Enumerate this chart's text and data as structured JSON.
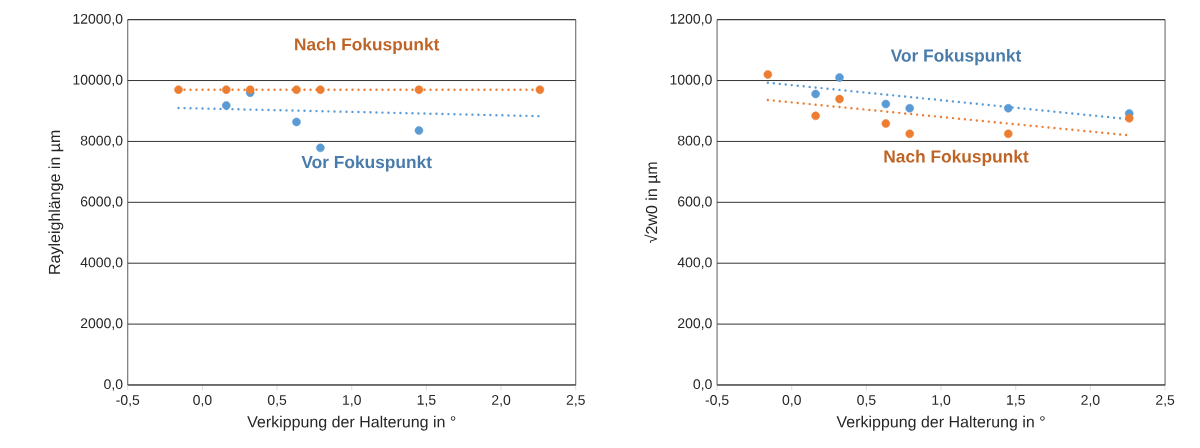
{
  "chart_data": [
    {
      "type": "scatter",
      "xlabel": "Verkippung der Halterung in °",
      "ylabel": "Rayleighlänge in µm",
      "grid": "y",
      "xlim": [
        -0.5,
        2.5
      ],
      "xticks": [
        {
          "value": -0.5,
          "label": "-0,5"
        },
        {
          "value": 0,
          "label": "0,0"
        },
        {
          "value": 0.5,
          "label": "0,5"
        },
        {
          "value": 1,
          "label": "1,0"
        },
        {
          "value": 1.5,
          "label": "1,5"
        },
        {
          "value": 2,
          "label": "2,0"
        },
        {
          "value": 2.5,
          "label": "2,5"
        }
      ],
      "ylim": [
        0,
        12000
      ],
      "yticks": [
        {
          "value": 0,
          "label": "0,0"
        },
        {
          "value": 2000,
          "label": "2000,0"
        },
        {
          "value": 4000,
          "label": "4000,0"
        },
        {
          "value": 6000,
          "label": "6000,0"
        },
        {
          "value": 8000,
          "label": "8000,0"
        },
        {
          "value": 10000,
          "label": "10000,0"
        },
        {
          "value": 12000,
          "label": "12000,0"
        }
      ],
      "series": [
        {
          "type": "line",
          "marker": "none",
          "line_style": "dotted",
          "color": "#5b9bd5",
          "x": [
            -0.16,
            2.26
          ],
          "values": [
            9100,
            8830
          ]
        },
        {
          "type": "line",
          "marker": "none",
          "line_style": "dotted",
          "color": "#ed7d31",
          "x": [
            -0.16,
            2.26
          ],
          "values": [
            9700,
            9700
          ]
        },
        {
          "name": "Vor Fokuspunkt",
          "marker": "circle",
          "color": "#5b9bd5",
          "x": [
            0.16,
            0.32,
            0.63,
            0.79,
            1.45
          ],
          "values": [
            9180,
            9600,
            8640,
            7790,
            8360
          ]
        },
        {
          "name": "Nach Fokuspunkt",
          "marker": "circle",
          "color": "#ed7d31",
          "x": [
            -0.16,
            0.16,
            0.32,
            0.63,
            0.79,
            1.45,
            2.26
          ],
          "values": [
            9700,
            9700,
            9700,
            9700,
            9700,
            9700,
            9700
          ]
        }
      ]
    },
    {
      "type": "scatter",
      "xlabel": "Verkippung der Halterung in °",
      "ylabel": "√2w0 in µm",
      "grid": "y",
      "xlim": [
        -0.5,
        2.5
      ],
      "xticks": [
        {
          "value": -0.5,
          "label": "-0,5"
        },
        {
          "value": 0,
          "label": "0,0"
        },
        {
          "value": 0.5,
          "label": "0,5"
        },
        {
          "value": 1,
          "label": "1,0"
        },
        {
          "value": 1.5,
          "label": "1,5"
        },
        {
          "value": 2,
          "label": "2,0"
        },
        {
          "value": 2.5,
          "label": "2,5"
        }
      ],
      "ylim": [
        0,
        1200
      ],
      "yticks": [
        {
          "value": 0,
          "label": "0,0"
        },
        {
          "value": 200,
          "label": "200,0"
        },
        {
          "value": 400,
          "label": "400,0"
        },
        {
          "value": 600,
          "label": "600,0"
        },
        {
          "value": 800,
          "label": "800,0"
        },
        {
          "value": 1000,
          "label": "1000,0"
        },
        {
          "value": 1200,
          "label": "1200,0"
        }
      ],
      "series": [
        {
          "type": "line",
          "marker": "none",
          "line_style": "dotted",
          "color": "#5b9bd5",
          "x": [
            -0.16,
            2.26
          ],
          "values": [
            993,
            873
          ]
        },
        {
          "type": "line",
          "marker": "none",
          "line_style": "dotted",
          "color": "#ed7d31",
          "x": [
            -0.16,
            2.26
          ],
          "values": [
            936,
            820
          ]
        },
        {
          "name": "Vor Fokuspunkt",
          "marker": "circle",
          "color": "#5b9bd5",
          "x": [
            0.16,
            0.32,
            0.63,
            0.79,
            1.45,
            2.26
          ],
          "values": [
            956,
            1010,
            923,
            909,
            909,
            892
          ]
        },
        {
          "name": "Nach Fokuspunkt",
          "marker": "circle",
          "color": "#ed7d31",
          "x": [
            -0.16,
            0.16,
            0.32,
            0.63,
            0.79,
            1.45,
            2.26
          ],
          "values": [
            1020,
            884,
            939,
            859,
            825,
            825,
            876
          ]
        }
      ]
    }
  ]
}
